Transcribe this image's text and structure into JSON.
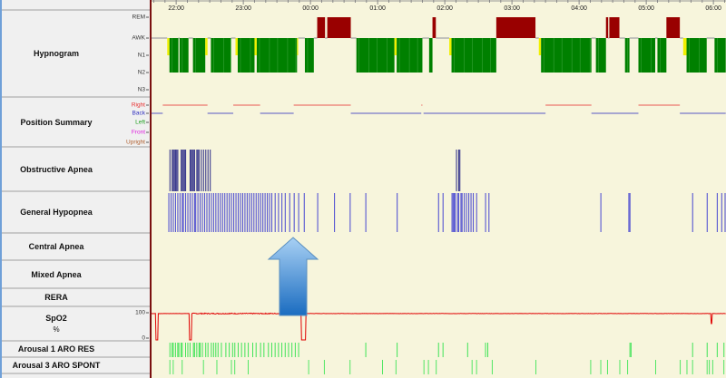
{
  "time_axis": {
    "start": "21:38",
    "end": "06:11",
    "labels": [
      "22:00",
      "23:00",
      "00:00",
      "01:00",
      "02:00",
      "03:00",
      "04:00",
      "05:00",
      "06:00"
    ]
  },
  "rows": {
    "hypnogram": {
      "label": "Hypnogram",
      "levels": [
        "REM",
        "AWK",
        "N1",
        "N2",
        "N3"
      ]
    },
    "position": {
      "label": "Position Summary",
      "levels": [
        "Right",
        "Back",
        "Left",
        "Front",
        "Upright"
      ],
      "level_colors": [
        "#e83030",
        "#3030c0",
        "#20a020",
        "#e020e0",
        "#b06030"
      ]
    },
    "obstructive": {
      "label": "Obstructive Apnea"
    },
    "hypopnea": {
      "label": "General Hypopnea"
    },
    "central": {
      "label": "Central Apnea"
    },
    "mixed": {
      "label": "Mixed Apnea"
    },
    "rera": {
      "label": "RERA"
    },
    "spo2": {
      "label": "SpO2",
      "unit": "%",
      "axis_max": "100",
      "axis_min": "0"
    },
    "arousal1": {
      "label": "Arousal 1 ARO RES"
    },
    "arousal3": {
      "label": "Arousal 3 ARO SPONT"
    }
  },
  "colors": {
    "REM": "#990000",
    "N1": "#f0f000",
    "N2": "#008000",
    "AWK": "#b0b0b0",
    "obstructive": "#1a1a80",
    "hypopnea": "#3a3ad0",
    "spo2": "#e00000",
    "arousal": "#20e040",
    "arrow": "#2f86d0"
  },
  "hypnogram": [
    [
      "21:38",
      "21:52",
      "AWK"
    ],
    [
      "21:52",
      "21:54",
      "N1"
    ],
    [
      "21:54",
      "22:02",
      "N2"
    ],
    [
      "22:02",
      "22:03",
      "AWK"
    ],
    [
      "22:03",
      "22:11",
      "N2"
    ],
    [
      "22:11",
      "22:15",
      "AWK"
    ],
    [
      "22:15",
      "22:26",
      "N2"
    ],
    [
      "22:26",
      "22:28",
      "N1"
    ],
    [
      "22:28",
      "22:31",
      "AWK"
    ],
    [
      "22:31",
      "22:49",
      "N2"
    ],
    [
      "22:49",
      "22:53",
      "AWK"
    ],
    [
      "22:53",
      "22:55",
      "N1"
    ],
    [
      "22:55",
      "23:10",
      "N2"
    ],
    [
      "23:10",
      "23:12",
      "N1"
    ],
    [
      "23:12",
      "23:48",
      "N2"
    ],
    [
      "23:48",
      "23:49",
      "N1"
    ],
    [
      "23:49",
      "23:55",
      "AWK"
    ],
    [
      "23:55",
      "00:03",
      "N2"
    ],
    [
      "00:03",
      "00:06",
      "AWK"
    ],
    [
      "00:06",
      "00:13",
      "REM"
    ],
    [
      "00:13",
      "00:15",
      "AWK"
    ],
    [
      "00:15",
      "00:36",
      "REM"
    ],
    [
      "00:36",
      "00:41",
      "AWK"
    ],
    [
      "00:41",
      "01:15",
      "N2"
    ],
    [
      "01:15",
      "01:17",
      "N1"
    ],
    [
      "01:17",
      "01:40",
      "N2"
    ],
    [
      "01:40",
      "01:46",
      "AWK"
    ],
    [
      "01:46",
      "01:49",
      "N2"
    ],
    [
      "01:49",
      "01:52",
      "REM"
    ],
    [
      "01:52",
      "02:04",
      "AWK"
    ],
    [
      "02:04",
      "02:06",
      "N1"
    ],
    [
      "02:06",
      "02:46",
      "N2"
    ],
    [
      "02:46",
      "03:21",
      "REM"
    ],
    [
      "03:21",
      "03:24",
      "AWK"
    ],
    [
      "03:24",
      "03:26",
      "N1"
    ],
    [
      "03:26",
      "04:11",
      "N2"
    ],
    [
      "04:11",
      "04:15",
      "AWK"
    ],
    [
      "04:15",
      "04:24",
      "N2"
    ],
    [
      "04:24",
      "04:26",
      "REM"
    ],
    [
      "04:26",
      "04:27",
      "AWK"
    ],
    [
      "04:27",
      "04:36",
      "REM"
    ],
    [
      "04:36",
      "04:41",
      "AWK"
    ],
    [
      "04:41",
      "04:45",
      "N2"
    ],
    [
      "04:45",
      "04:53",
      "AWK"
    ],
    [
      "04:53",
      "05:08",
      "N2"
    ],
    [
      "05:08",
      "05:10",
      "AWK"
    ],
    [
      "05:10",
      "05:18",
      "N2"
    ],
    [
      "05:18",
      "05:30",
      "REM"
    ],
    [
      "05:30",
      "05:33",
      "AWK"
    ],
    [
      "05:33",
      "05:36",
      "N1"
    ],
    [
      "05:36",
      "05:54",
      "N2"
    ],
    [
      "05:54",
      "06:01",
      "AWK"
    ],
    [
      "06:01",
      "06:11",
      "N2"
    ]
  ],
  "position": [
    [
      "21:38",
      "21:48",
      "Back"
    ],
    [
      "21:48",
      "22:28",
      "Right"
    ],
    [
      "22:28",
      "22:51",
      "Back"
    ],
    [
      "22:51",
      "23:15",
      "Right"
    ],
    [
      "23:15",
      "23:45",
      "Back"
    ],
    [
      "23:45",
      "00:36",
      "Right"
    ],
    [
      "00:36",
      "01:39",
      "Back"
    ],
    [
      "01:39",
      "01:40",
      "Right"
    ],
    [
      "01:41",
      "03:30",
      "Back"
    ],
    [
      "03:30",
      "04:11",
      "Right"
    ],
    [
      "04:11",
      "04:53",
      "Back"
    ],
    [
      "04:53",
      "05:30",
      "Right"
    ],
    [
      "05:30",
      "06:11",
      "Back"
    ]
  ],
  "obstructive_events": [
    "21:54",
    "21:56",
    "21:57",
    "21:58",
    "21:59",
    "22:00",
    "22:01",
    "22:04",
    "22:05",
    "22:06",
    "22:07",
    "22:08",
    "22:12",
    "22:13",
    "22:14",
    "22:15",
    "22:16",
    "22:18",
    "22:19",
    "22:20",
    "22:22",
    "22:24",
    "22:26",
    "22:28",
    "22:30",
    "02:10",
    "02:12",
    "02:13"
  ],
  "hypopnea_events": [
    "21:53",
    "21:55",
    "21:57",
    "21:59",
    "22:01",
    "22:03",
    "22:05",
    "22:06",
    "22:08",
    "22:10",
    "22:12",
    "22:14",
    "22:16",
    "22:17",
    "22:19",
    "22:21",
    "22:23",
    "22:25",
    "22:27",
    "22:29",
    "22:31",
    "22:33",
    "22:35",
    "22:37",
    "22:39",
    "22:41",
    "22:43",
    "22:45",
    "22:47",
    "22:49",
    "22:51",
    "22:53",
    "22:55",
    "22:57",
    "22:59",
    "23:01",
    "23:03",
    "23:05",
    "23:07",
    "23:09",
    "23:11",
    "23:13",
    "23:15",
    "23:17",
    "23:19",
    "23:21",
    "23:23",
    "23:25",
    "23:28",
    "23:31",
    "23:34",
    "23:37",
    "23:41",
    "23:45",
    "23:49",
    "23:54",
    "00:06",
    "00:21",
    "00:35",
    "00:49",
    "01:17",
    "01:54",
    "01:58",
    "02:06",
    "02:07",
    "02:08",
    "02:09",
    "02:11",
    "02:12",
    "02:14",
    "02:15",
    "02:17",
    "02:19",
    "02:21",
    "02:23",
    "02:25",
    "02:28",
    "02:36",
    "02:39",
    "04:19",
    "04:44",
    "04:45",
    "05:41",
    "05:54",
    "06:03",
    "06:07",
    "06:10"
  ],
  "spo2": {
    "baseline": 97,
    "dips": [
      [
        "21:42",
        "21:43",
        0
      ],
      [
        "22:12",
        "22:13",
        0
      ],
      [
        "23:52",
        "23:55",
        0
      ],
      [
        "05:58",
        "05:58",
        60
      ]
    ]
  },
  "arousal1_events": [
    "21:54",
    "21:56",
    "21:57",
    "21:59",
    "22:01",
    "22:02",
    "22:04",
    "22:05",
    "22:08",
    "22:10",
    "22:12",
    "22:15",
    "22:16",
    "22:18",
    "22:20",
    "22:21",
    "22:23",
    "22:26",
    "22:28",
    "22:31",
    "22:33",
    "22:35",
    "22:37",
    "22:40",
    "22:44",
    "22:47",
    "22:50",
    "22:52",
    "22:55",
    "22:58",
    "23:01",
    "23:04",
    "23:08",
    "23:11",
    "23:15",
    "23:18",
    "23:22",
    "23:25",
    "23:28",
    "23:31",
    "23:34",
    "23:37",
    "23:40",
    "23:43",
    "23:46",
    "23:49",
    "00:49",
    "01:17",
    "01:54",
    "01:58",
    "02:20",
    "02:36",
    "02:38",
    "04:45",
    "04:46",
    "05:41",
    "05:54",
    "06:03",
    "06:09"
  ],
  "arousal3_events": [
    "21:54",
    "21:57",
    "22:05",
    "22:24",
    "22:36",
    "22:49",
    "22:52",
    "23:04",
    "23:58",
    "00:12",
    "00:35",
    "01:04",
    "01:16",
    "01:41",
    "01:45",
    "01:52",
    "02:24",
    "02:28",
    "02:42",
    "03:21",
    "04:10",
    "04:19",
    "04:25",
    "04:36",
    "04:43",
    "05:08",
    "05:30",
    "05:36",
    "05:41",
    "05:54",
    "05:56",
    "05:59",
    "06:09"
  ]
}
